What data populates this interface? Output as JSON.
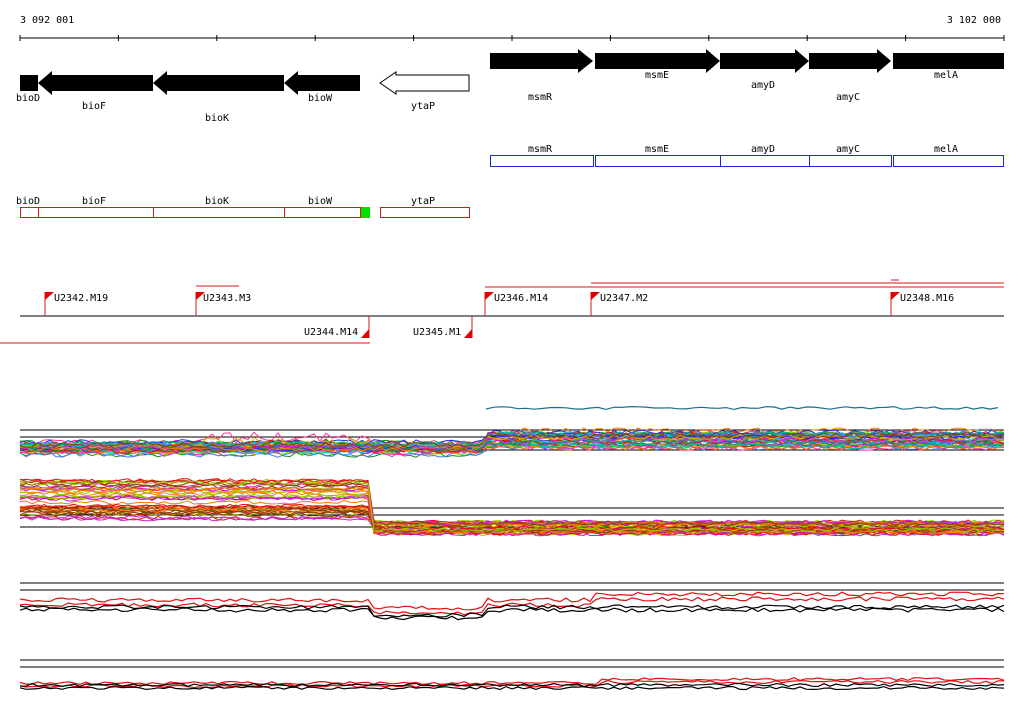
{
  "ruler": {
    "start_label": "3 092 001",
    "end_label": "3 102 000"
  },
  "genes": [
    {
      "name": "bioD",
      "strand": "-",
      "fill": "black"
    },
    {
      "name": "bioF",
      "strand": "-",
      "fill": "black"
    },
    {
      "name": "bioK",
      "strand": "-",
      "fill": "black"
    },
    {
      "name": "bioW",
      "strand": "-",
      "fill": "black"
    },
    {
      "name": "ytaP",
      "strand": "-",
      "fill": "white"
    },
    {
      "name": "msmR",
      "strand": "+",
      "fill": "black"
    },
    {
      "name": "msmE",
      "strand": "+",
      "fill": "black"
    },
    {
      "name": "amyD",
      "strand": "+",
      "fill": "black"
    },
    {
      "name": "amyC",
      "strand": "+",
      "fill": "black"
    },
    {
      "name": "melA",
      "strand": "+",
      "fill": "black"
    }
  ],
  "operon_blue": [
    "msmR",
    "msmE",
    "amyD",
    "amyC",
    "melA"
  ],
  "operon_red": [
    "bioD",
    "bioF",
    "bioK",
    "bioW",
    "ytaP"
  ],
  "transcription_units": [
    {
      "label": "U2342.M19",
      "strand": "+"
    },
    {
      "label": "U2343.M3",
      "strand": "+"
    },
    {
      "label": "U2344.M14",
      "strand": "-"
    },
    {
      "label": "U2345.M1",
      "strand": "-"
    },
    {
      "label": "U2346.M14",
      "strand": "+"
    },
    {
      "label": "U2347.M2",
      "strand": "+"
    },
    {
      "label": "U2348.M16",
      "strand": "+"
    }
  ],
  "colors": {
    "gene_fill": "#000000",
    "operon_blue": "#1a2bd6",
    "operon_red": "#d41a1a",
    "marker_green": "#00e000",
    "tu_flag": "#e00000",
    "profile_red": "#e01010",
    "profile_black": "#000000"
  }
}
